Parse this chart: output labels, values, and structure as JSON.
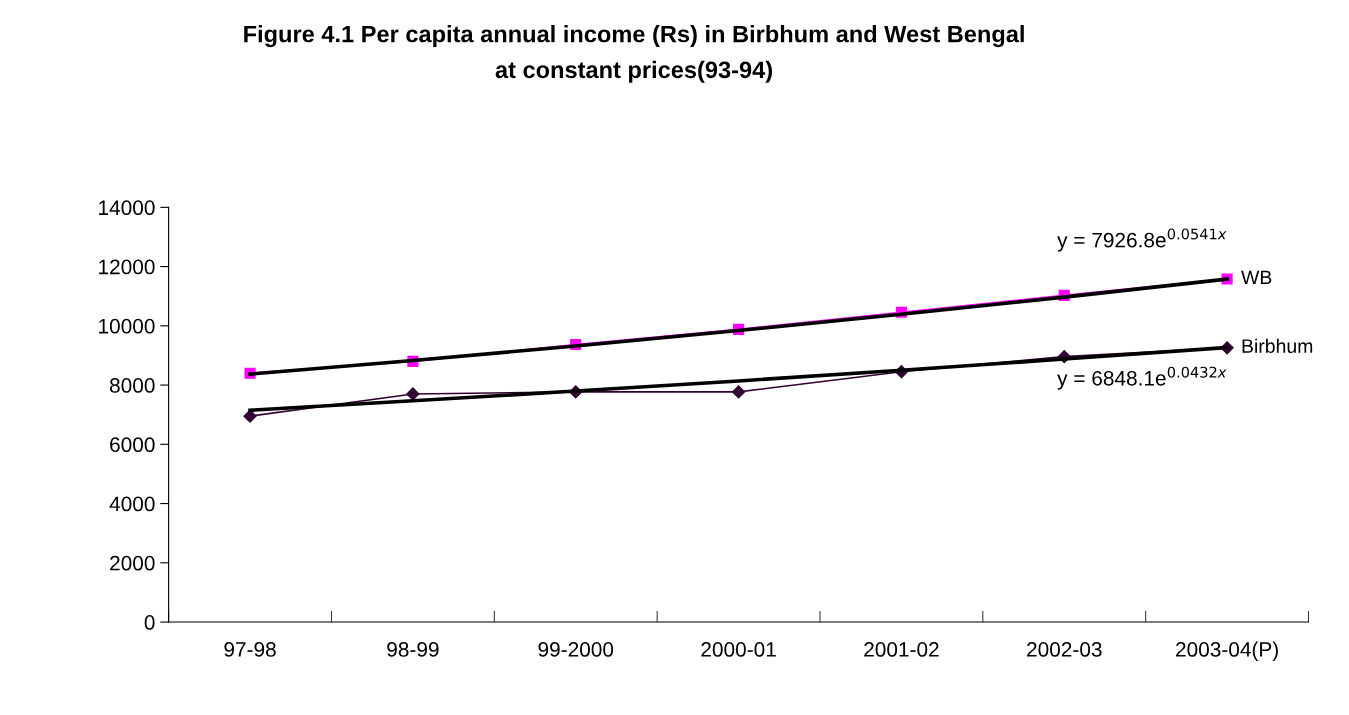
{
  "chart_data": {
    "type": "line",
    "title": "Figure 4.1 Per capita annual income (Rs) in Birbhum and West Bengal\nat constant prices(93-94)",
    "categories": [
      "97-98",
      "98-99",
      "99-2000",
      "2000-01",
      "2001-02",
      "2002-03",
      "2003-04(P)"
    ],
    "series": [
      {
        "name": "WB",
        "color": "#ff00ff",
        "marker": "square",
        "values": [
          8400,
          8800,
          9370,
          9880,
          10460,
          11030,
          11580
        ]
      },
      {
        "name": "Birbhum",
        "color": "#330033",
        "marker": "diamond",
        "values": [
          6950,
          7700,
          7770,
          7770,
          8450,
          8960,
          9260
        ]
      },
      {
        "type": "line",
        "color": "#000000",
        "marker": "none",
        "values": [
          8370,
          8830,
          9320,
          9840,
          10390,
          10970,
          11580
        ]
      },
      {
        "type": "line",
        "color": "#000000",
        "marker": "none",
        "values": [
          7150,
          7470,
          7800,
          8140,
          8500,
          8880,
          9270
        ]
      }
    ],
    "annotations": [
      "y = 7926.8e$^{0.0541x}$",
      "y = 6848.1e$^{0.0432x}$"
    ],
    "ylim": [
      0,
      14000
    ],
    "yticks": [
      0,
      2000,
      4000,
      6000,
      8000,
      10000,
      12000,
      14000
    ],
    "grid": false,
    "legend": false
  }
}
